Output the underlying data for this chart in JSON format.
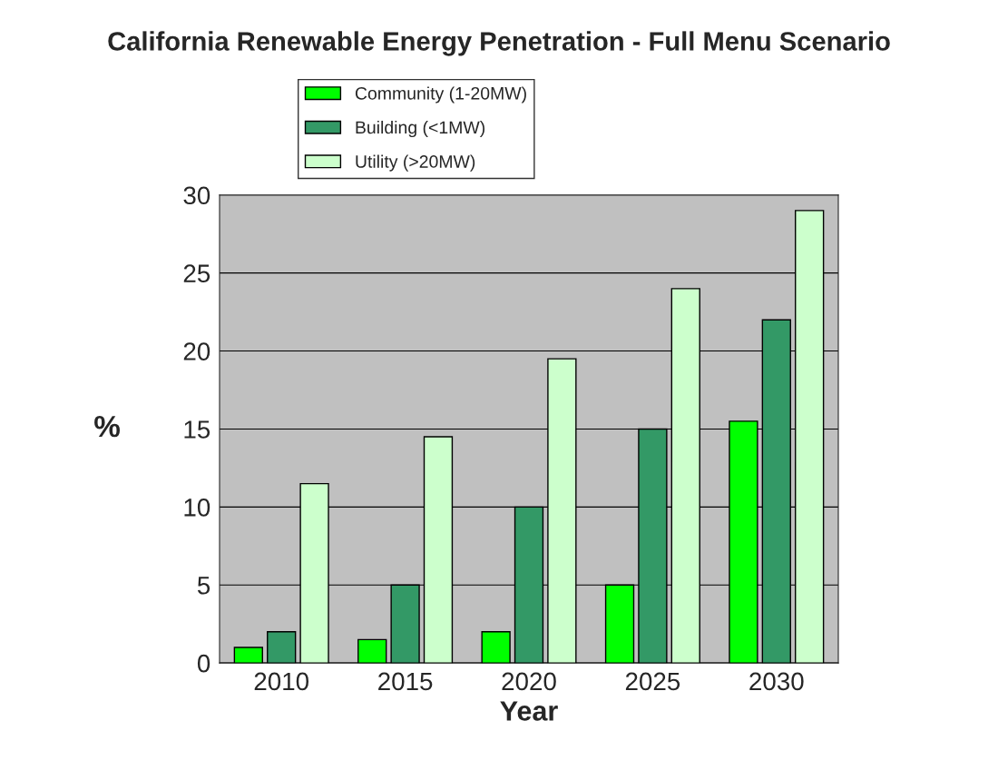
{
  "chart_data": {
    "type": "bar",
    "title": "California Renewable Energy Penetration - Full Menu Scenario",
    "xlabel": "Year",
    "ylabel": "%",
    "categories": [
      "2010",
      "2015",
      "2020",
      "2025",
      "2030"
    ],
    "series": [
      {
        "name": "Community (1-20MW)",
        "color": "#00ff00",
        "values": [
          1,
          1.5,
          2,
          5,
          15.5
        ]
      },
      {
        "name": "Building (<1MW)",
        "color": "#339966",
        "values": [
          2,
          5,
          10,
          15,
          22
        ]
      },
      {
        "name": "Utility (>20MW)",
        "color": "#ccffcc",
        "values": [
          11.5,
          14.5,
          19.5,
          24,
          29
        ]
      }
    ],
    "ylim": [
      0,
      30
    ],
    "yticks": [
      0,
      5,
      10,
      15,
      20,
      25,
      30
    ],
    "grid": "y",
    "legend": "top left"
  }
}
